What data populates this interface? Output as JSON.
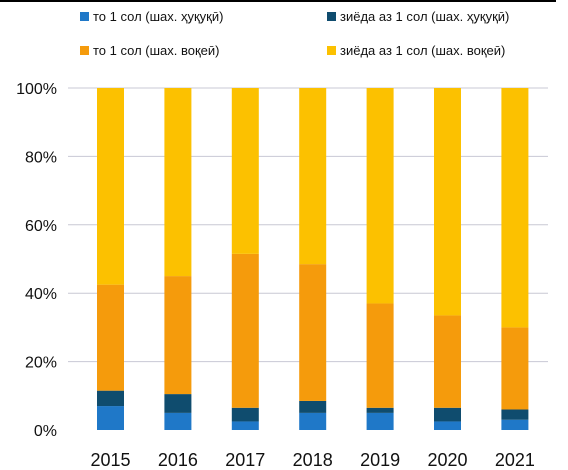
{
  "chart_data": {
    "type": "bar",
    "stacked": true,
    "percent": true,
    "title": "",
    "xlabel": "",
    "ylabel": "",
    "categories": [
      "2015",
      "2016",
      "2017",
      "2018",
      "2019",
      "2020",
      "2021"
    ],
    "ylim": [
      0,
      100
    ],
    "yticks": [
      "0%",
      "20%",
      "40%",
      "60%",
      "80%",
      "100%"
    ],
    "grid": true,
    "legend_position": "top",
    "series": [
      {
        "name": "то 1 сол (шах. ҳуқуқӣ)",
        "color": "#1f78c8",
        "values": [
          7,
          5,
          2.5,
          5,
          5,
          2.5,
          3
        ]
      },
      {
        "name": "зиёда аз 1 сол (шах. ҳуқуқӣ)",
        "color": "#0f4c6e",
        "values": [
          4.5,
          5.5,
          4,
          3.5,
          1.5,
          4,
          3
        ]
      },
      {
        "name": "то 1 сол (шах. воқеӣ)",
        "color": "#f59b0c",
        "values": [
          31,
          34.5,
          45,
          40,
          30.5,
          27,
          24
        ]
      },
      {
        "name": "зиёда аз 1 сол (шах. воқеӣ)",
        "color": "#fcc100",
        "values": [
          57.5,
          55,
          48.5,
          51.5,
          63,
          66.5,
          70
        ]
      }
    ]
  }
}
